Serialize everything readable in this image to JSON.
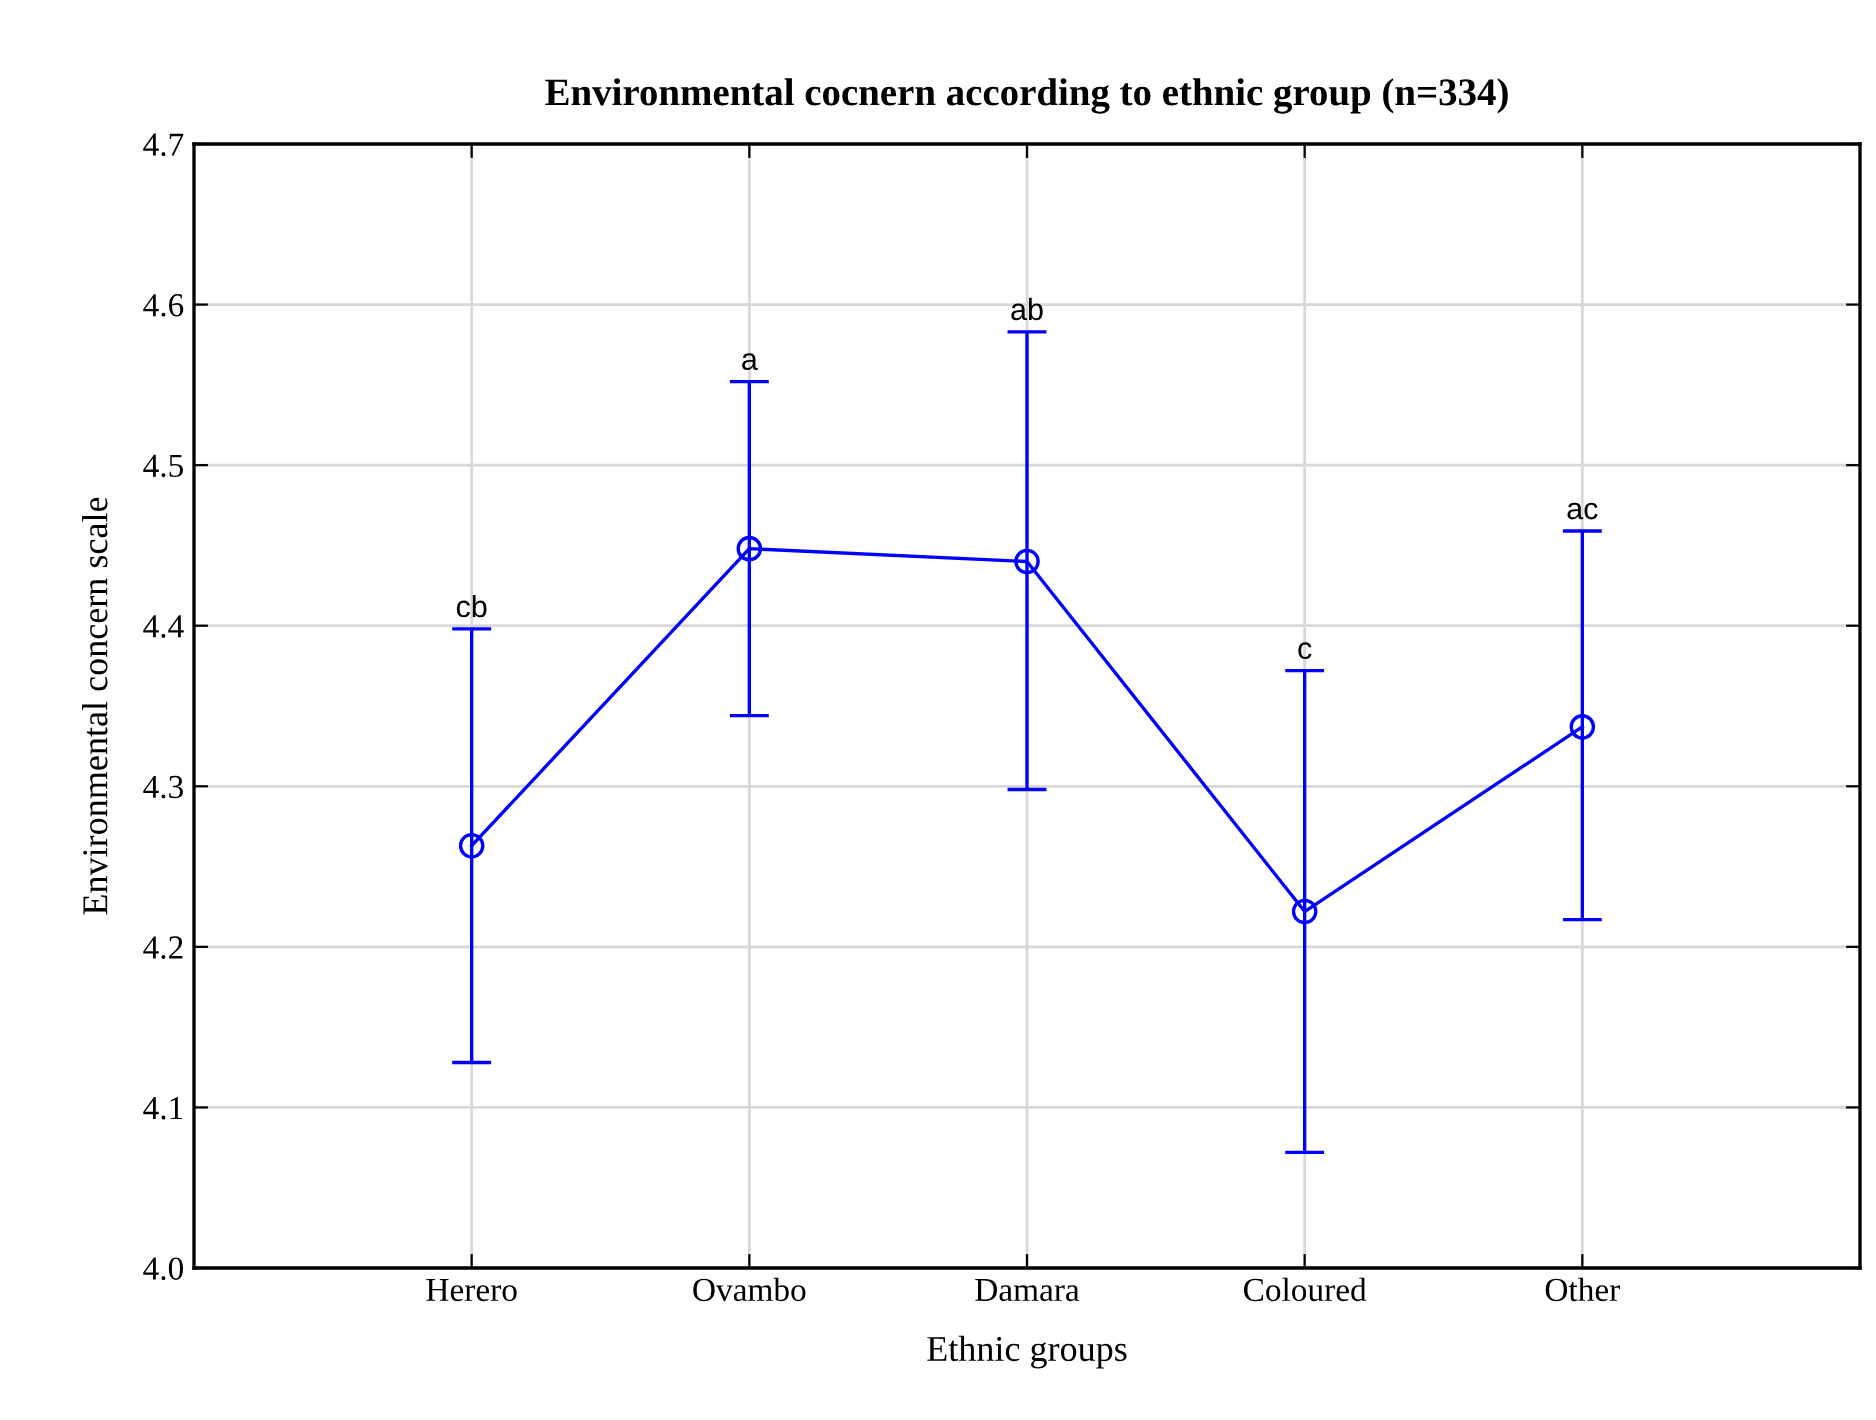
{
  "chart_data": {
    "type": "line",
    "title": "Environmental cocnern according to ethnic group (n=334)",
    "xlabel": "Ethnic groups",
    "ylabel": "Environmental concern scale",
    "categories": [
      "Herero",
      "Ovambo",
      "Damara",
      "Coloured",
      "Other"
    ],
    "series": [
      {
        "color": "#0000ff",
        "values": [
          4.263,
          4.448,
          4.44,
          4.222,
          4.337
        ],
        "errors": [
          [
            4.128,
            4.398
          ],
          [
            4.344,
            4.552
          ],
          [
            4.298,
            4.583
          ],
          [
            4.072,
            4.372
          ],
          [
            4.217,
            4.459
          ]
        ]
      }
    ],
    "annotations": [
      {
        "text": "cb",
        "x": "Herero",
        "y": 4.398
      },
      {
        "text": "a",
        "x": "Ovambo",
        "y": 4.552
      },
      {
        "text": "ab",
        "x": "Damara",
        "y": 4.583
      },
      {
        "text": "c",
        "x": "Coloured",
        "y": 4.372
      },
      {
        "text": "ac",
        "x": "Other",
        "y": 4.459
      }
    ],
    "ylim": [
      4.0,
      4.7
    ],
    "yticks": [
      {
        "value": 4.0,
        "label": "4.0"
      },
      4.1,
      4.2,
      4.3,
      4.4,
      4.5,
      4.6,
      4.7
    ],
    "grid": true,
    "marker": "circle",
    "line_style": "solid"
  }
}
